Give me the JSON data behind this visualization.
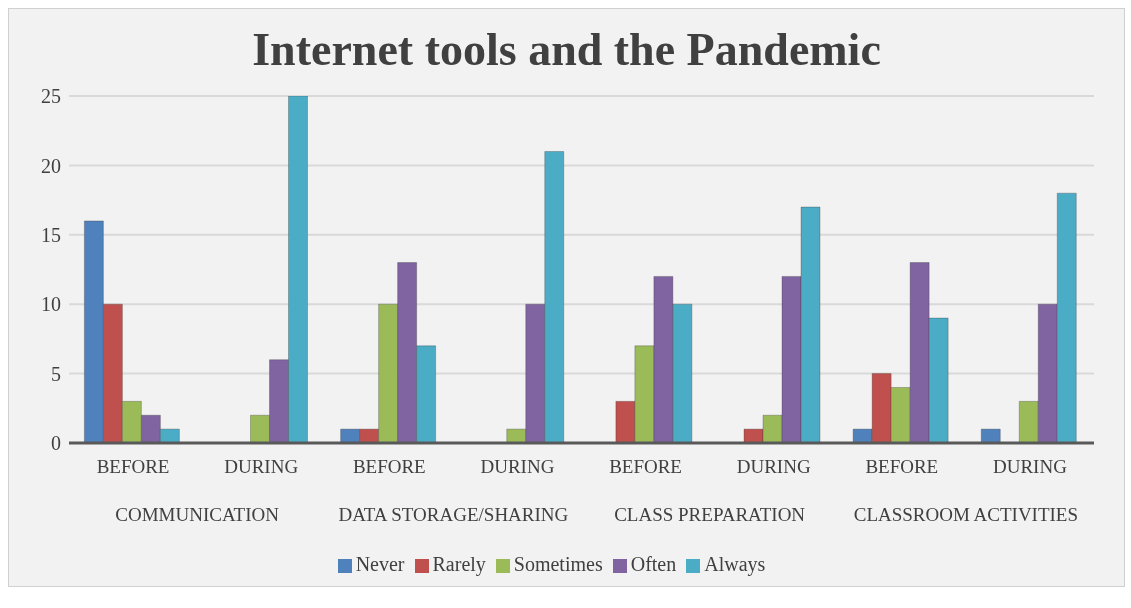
{
  "chart_data": {
    "type": "bar",
    "title": "Internet tools and the Pandemic",
    "categories": [
      "BEFORE",
      "DURING",
      "BEFORE",
      "DURING",
      "BEFORE",
      "DURING",
      "BEFORE",
      "DURING"
    ],
    "annotations": [
      "COMMUNICATION",
      "DATA STORAGE/SHARING",
      "CLASS PREPARATION",
      "CLASSROOM ACTIVITIES"
    ],
    "series": [
      {
        "name": "Never",
        "color": "#4f81bd",
        "values": [
          16,
          0,
          1,
          0,
          0,
          0,
          1,
          1
        ]
      },
      {
        "name": "Rarely",
        "color": "#c0504d",
        "values": [
          10,
          0,
          1,
          0,
          3,
          1,
          5,
          0
        ]
      },
      {
        "name": "Sometimes",
        "color": "#9bbb59",
        "values": [
          3,
          2,
          10,
          1,
          7,
          2,
          4,
          3
        ]
      },
      {
        "name": "Often",
        "color": "#8064a2",
        "values": [
          2,
          6,
          13,
          10,
          12,
          12,
          13,
          10
        ]
      },
      {
        "name": "Always",
        "color": "#4bacc6",
        "values": [
          1,
          25,
          7,
          21,
          10,
          17,
          9,
          18
        ]
      }
    ],
    "ylim": [
      0,
      25
    ],
    "yticks": [
      0,
      5,
      10,
      15,
      20,
      25
    ],
    "grid": "y",
    "legend": "bottom"
  }
}
